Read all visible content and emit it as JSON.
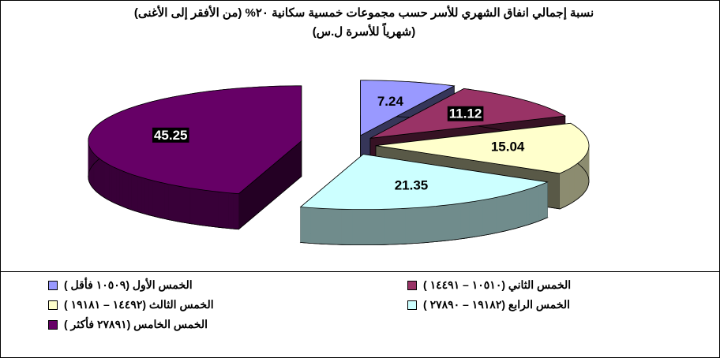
{
  "chart_data": {
    "type": "pie",
    "title": "نسبة إجمالي انفاق الشهري للأسر حسب مجموعات خمسية سكانية ٢٠%  (من الأفقر إلى الأغنى)(شهرياً للأسرة ل.س)",
    "categories": [
      "الخمس الأول (١٠٥٠٩ فأقل )",
      "الخمس الثاني (١٠٥١٠ – ١٤٤٩١ )",
      "الخمس الثالث (١٤٤٩٢ – ١٩١٨١ )",
      "الخمس  الرابع (١٩١٨٢ – ٢٧٨٩٠ )",
      "الخمس الخامس (٢٧٨٩١ فأكثر )"
    ],
    "values": [
      7.24,
      11.12,
      15.04,
      21.35,
      45.25
    ],
    "colors": [
      "#9999ff",
      "#993366",
      "#ffffcc",
      "#ccffff",
      "#660066"
    ],
    "legend": "bottom"
  }
}
